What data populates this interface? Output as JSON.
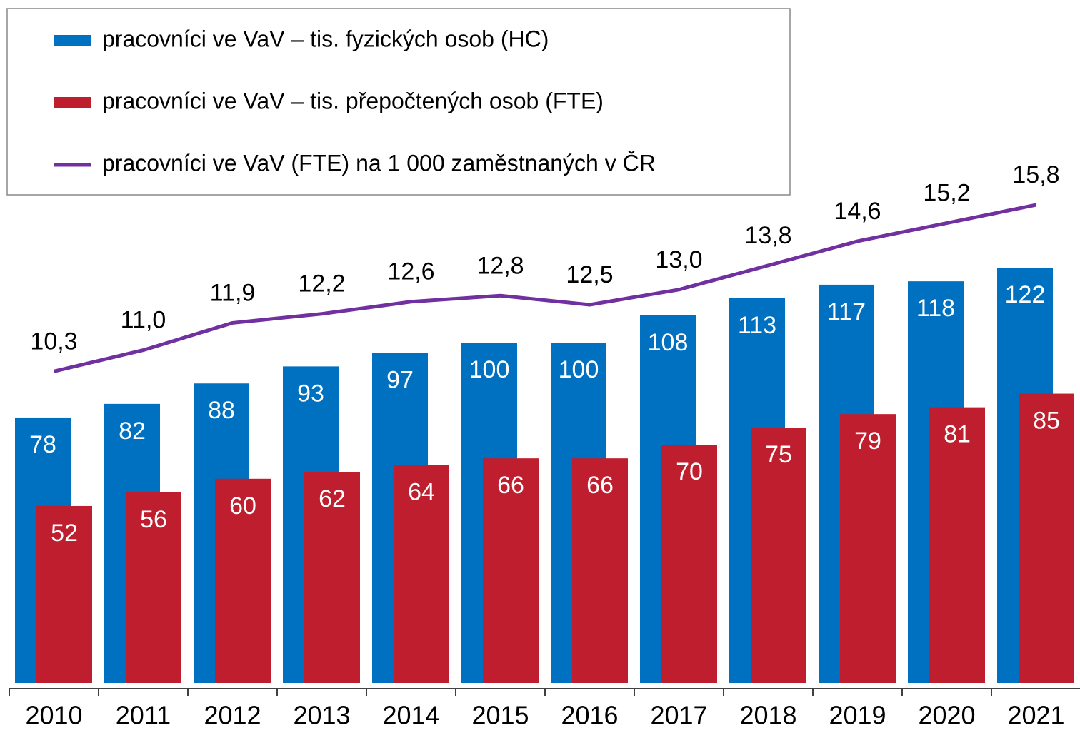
{
  "chart_data": {
    "type": "bar",
    "categories": [
      "2010",
      "2011",
      "2012",
      "2013",
      "2014",
      "2015",
      "2016",
      "2017",
      "2018",
      "2019",
      "2020",
      "2021"
    ],
    "ylim": [
      0,
      200
    ],
    "y2lim": [
      0,
      22.5
    ],
    "legend": "top-left",
    "series": [
      {
        "name": "pracovníci ve VaV – tis. fyzických osob (HC)",
        "type": "bar",
        "color": "#0070c0",
        "values": [
          78,
          82,
          88,
          93,
          97,
          100,
          100,
          108,
          113,
          117,
          118,
          122
        ]
      },
      {
        "name": "pracovníci ve VaV – tis. přepočtených osob (FTE)",
        "type": "bar",
        "color": "#be1e2d",
        "values": [
          52,
          56,
          60,
          62,
          64,
          66,
          66,
          70,
          75,
          79,
          81,
          85
        ]
      },
      {
        "name": "pracovníci ve VaV (FTE) na 1 000 zaměstnaných v ČR",
        "type": "line",
        "axis": "y2",
        "color": "#7030a0",
        "values": [
          10.3,
          11.0,
          11.9,
          12.2,
          12.6,
          12.8,
          12.5,
          13.0,
          13.8,
          14.6,
          15.2,
          15.8
        ],
        "value_labels": [
          "10,3",
          "11,0",
          "11,9",
          "12,2",
          "12,6",
          "12,8",
          "12,5",
          "13,0",
          "13,8",
          "14,6",
          "15,2",
          "15,8"
        ]
      }
    ]
  }
}
